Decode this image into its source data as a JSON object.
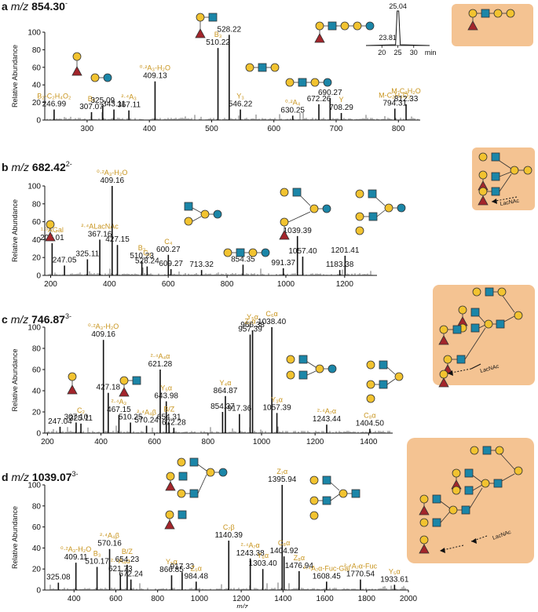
{
  "colors": {
    "peak": "#111111",
    "fragment": "#c8941d",
    "galactose": "#f2c330",
    "glcnac": "#1b86a8",
    "fucose": "#a3252b",
    "glucose": "#1b86a8",
    "highlight": "#f4c392",
    "leader": "#333333"
  },
  "x_axis_label": "m/z",
  "y_axis_label": "Relative Abundance",
  "chart_data": [
    {
      "type": "bar",
      "panel": "a",
      "title_prefix": "m/z",
      "precursor": "854.30",
      "charge": "-",
      "ylabel": "Relative Abundance",
      "xlim": [
        232,
        835
      ],
      "ylim": [
        0,
        100
      ],
      "xticks": [
        300,
        400,
        500,
        600,
        700,
        800
      ],
      "yticks": [
        0,
        20,
        40,
        60,
        80,
        100
      ],
      "peaks": [
        {
          "x": 246.99,
          "y": 12,
          "label": "246.99",
          "frag": "B₂-C₂H₄O₂"
        },
        {
          "x": 307.07,
          "y": 9,
          "label": "307.07",
          "frag": "B₂"
        },
        {
          "x": 325.09,
          "y": 16,
          "label": "325.09"
        },
        {
          "x": 343.11,
          "y": 12,
          "label": "343.11"
        },
        {
          "x": 367.11,
          "y": 11,
          "label": "367.11",
          "frag": "²·⁴A₃"
        },
        {
          "x": 409.13,
          "y": 44,
          "label": "409.13",
          "frag": "⁰·²A₃-H₂O"
        },
        {
          "x": 510.22,
          "y": 82,
          "label": "510.22",
          "frag": "B₃"
        },
        {
          "x": 528.22,
          "y": 97,
          "label": "528.22"
        },
        {
          "x": 546.22,
          "y": 12,
          "label": "546.22",
          "frag": "Y₃"
        },
        {
          "x": 630.25,
          "y": 5,
          "label": "630.25",
          "frag": "⁰·²A₄"
        },
        {
          "x": 672.26,
          "y": 18,
          "label": "672.26"
        },
        {
          "x": 690.27,
          "y": 25,
          "label": "690.27"
        },
        {
          "x": 708.29,
          "y": 8,
          "label": "708.29",
          "frag": "Y"
        },
        {
          "x": 794.31,
          "y": 13,
          "label": "794.31",
          "frag": "M-C₂H₄O₂"
        },
        {
          "x": 812.33,
          "y": 18,
          "label": "812.33",
          "frag": "M-C₂H₂O"
        }
      ],
      "inset": {
        "peaks": [
          "25.04",
          "23.81"
        ],
        "xticks": [
          20,
          25,
          30
        ],
        "xunit": "min"
      }
    },
    {
      "type": "bar",
      "panel": "b",
      "title_prefix": "m/z",
      "precursor": "682.42",
      "charge": "2-",
      "ylabel": "Relative Abundance",
      "xlim": [
        180,
        1310
      ],
      "ylim": [
        0,
        100
      ],
      "xticks": [
        200,
        400,
        600,
        800,
        1000,
        1200
      ],
      "yticks": [
        0,
        20,
        40,
        60,
        80,
        100
      ],
      "peaks": [
        {
          "x": 205.01,
          "y": 36,
          "label": "205.01",
          "frag": "¹·³AGal"
        },
        {
          "x": 247.05,
          "y": 11,
          "label": "247.05"
        },
        {
          "x": 325.11,
          "y": 18,
          "label": "325.11"
        },
        {
          "x": 367.16,
          "y": 40,
          "label": "367.16",
          "frag": "²·⁴ALacNAc"
        },
        {
          "x": 409.16,
          "y": 100,
          "label": "409.16",
          "frag": "⁰·²A₃-H₂O"
        },
        {
          "x": 427.15,
          "y": 34,
          "label": "427.15"
        },
        {
          "x": 510.23,
          "y": 16,
          "label": "510.23",
          "frag": "B₃"
        },
        {
          "x": 528.24,
          "y": 10,
          "label": "528.24",
          "frag": "C₃"
        },
        {
          "x": 600.27,
          "y": 23,
          "label": "600.27",
          "frag": "C₄"
        },
        {
          "x": 609.27,
          "y": 7,
          "label": "609.27"
        },
        {
          "x": 713.32,
          "y": 6,
          "label": "713.32"
        },
        {
          "x": 854.35,
          "y": 12,
          "label": "854.35"
        },
        {
          "x": 991.37,
          "y": 8,
          "label": "991.37"
        },
        {
          "x": 1039.39,
          "y": 44,
          "label": "1039.39"
        },
        {
          "x": 1057.4,
          "y": 21,
          "label": "1057.40"
        },
        {
          "x": 1183.38,
          "y": 6,
          "label": "1183.38"
        },
        {
          "x": 1201.41,
          "y": 22,
          "label": "1201.41"
        }
      ],
      "annotation": "LacNAc"
    },
    {
      "type": "bar",
      "panel": "c",
      "title_prefix": "m/z",
      "precursor": "746.87",
      "charge": "3-",
      "ylabel": "Relative Abundance",
      "xlim": [
        190,
        1490
      ],
      "ylim": [
        0,
        100
      ],
      "xticks": [
        200,
        400,
        600,
        800,
        1000,
        1200,
        1400
      ],
      "yticks": [
        0,
        20,
        40,
        60,
        80,
        100
      ],
      "peaks": [
        {
          "x": 247.04,
          "y": 6,
          "label": "247.04"
        },
        {
          "x": 307.1,
          "y": 10,
          "label": "307.10"
        },
        {
          "x": 325.11,
          "y": 9,
          "label": "325.11",
          "frag": "C₂"
        },
        {
          "x": 409.16,
          "y": 88,
          "label": "409.16",
          "frag": "⁰·²A₃-H₂O"
        },
        {
          "x": 427.18,
          "y": 38,
          "label": "427.18"
        },
        {
          "x": 467.15,
          "y": 17,
          "label": "467.15",
          "frag": "²·⁴A₃"
        },
        {
          "x": 510.25,
          "y": 10,
          "label": "510.25"
        },
        {
          "x": 570.24,
          "y": 7,
          "label": "570.24",
          "frag": "²·⁴A₄β"
        },
        {
          "x": 621.28,
          "y": 60,
          "label": "621.28",
          "frag": "²·⁴A₄α"
        },
        {
          "x": 643.98,
          "y": 30,
          "label": "643.98",
          "frag": "Y₅α"
        },
        {
          "x": 654.31,
          "y": 10,
          "label": "654.31",
          "frag": "B/Z"
        },
        {
          "x": 672.28,
          "y": 5,
          "label": "672.28"
        },
        {
          "x": 854.37,
          "y": 20,
          "label": "854.37"
        },
        {
          "x": 864.87,
          "y": 35,
          "label": "864.87",
          "frag": "Y₄α"
        },
        {
          "x": 917.36,
          "y": 18,
          "label": "917.36"
        },
        {
          "x": 957.39,
          "y": 93,
          "label": "957.39",
          "frag": "Z₅α"
        },
        {
          "x": 966.38,
          "y": 97,
          "label": "966.38",
          "frag": "Y₅α"
        },
        {
          "x": 1038.4,
          "y": 100,
          "label": "1038.40",
          "frag": "C₆α"
        },
        {
          "x": 1057.39,
          "y": 19,
          "label": "1057.39",
          "frag": "Y₃α"
        },
        {
          "x": 1243.44,
          "y": 8,
          "label": "1243.44",
          "frag": "²·⁴A₇α"
        },
        {
          "x": 1404.5,
          "y": 4,
          "label": "1404.50",
          "frag": "C₈α"
        }
      ],
      "annotation": "LacNAc"
    },
    {
      "type": "bar",
      "panel": "d",
      "title_prefix": "m/z",
      "precursor": "1039.07",
      "charge": "3-",
      "ylabel": "Relative Abundance",
      "xlabel": "m/z",
      "xlim": [
        260,
        2000
      ],
      "ylim": [
        0,
        100
      ],
      "xticks": [
        400,
        600,
        800,
        1000,
        1200,
        1400,
        1600,
        1800,
        2000
      ],
      "yticks": [
        0,
        20,
        40,
        60,
        80,
        100
      ],
      "peaks": [
        {
          "x": 325.08,
          "y": 7,
          "label": "325.08"
        },
        {
          "x": 409.11,
          "y": 26,
          "label": "409.11",
          "frag": "⁰·²A₃-H₂O"
        },
        {
          "x": 510.17,
          "y": 22,
          "label": "510.17",
          "frag": "B₃"
        },
        {
          "x": 570.16,
          "y": 39,
          "label": "570.16",
          "frag": "²·⁴A₄β"
        },
        {
          "x": 621.73,
          "y": 15,
          "label": "621.73",
          "frag": "²·⁴A₄α"
        },
        {
          "x": 654.23,
          "y": 24,
          "label": "654.23",
          "frag": "B/Z"
        },
        {
          "x": 672.24,
          "y": 10,
          "label": "672.24"
        },
        {
          "x": 866.85,
          "y": 14,
          "label": "866.85",
          "frag": "Y₅α"
        },
        {
          "x": 917.33,
          "y": 17,
          "label": "917.33"
        },
        {
          "x": 984.48,
          "y": 8,
          "label": "984.48",
          "frag": "Z₅α"
        },
        {
          "x": 1140.39,
          "y": 47,
          "label": "1140.39",
          "frag": "C₇β"
        },
        {
          "x": 1243.38,
          "y": 30,
          "label": "1243.38",
          "frag": "²·⁴A₇α"
        },
        {
          "x": 1303.4,
          "y": 20,
          "label": "1303.40",
          "frag": "Y₆α"
        },
        {
          "x": 1395.94,
          "y": 100,
          "label": "1395.94",
          "frag": "Z₇α"
        },
        {
          "x": 1404.92,
          "y": 32,
          "label": "1404.92",
          "frag": "C₈α"
        },
        {
          "x": 1476.94,
          "y": 18,
          "label": "1476.94",
          "frag": "Z₈α"
        },
        {
          "x": 1608.45,
          "y": 8,
          "label": "1608.45",
          "frag": "²·⁴A₇α-Fuc-Gal"
        },
        {
          "x": 1770.54,
          "y": 10,
          "label": "1770.54",
          "frag": "²·⁴A₇α-Fuc"
        },
        {
          "x": 1933.61,
          "y": 5,
          "label": "1933.61",
          "frag": "Y₅α"
        }
      ],
      "annotation": "LacNAc"
    }
  ]
}
